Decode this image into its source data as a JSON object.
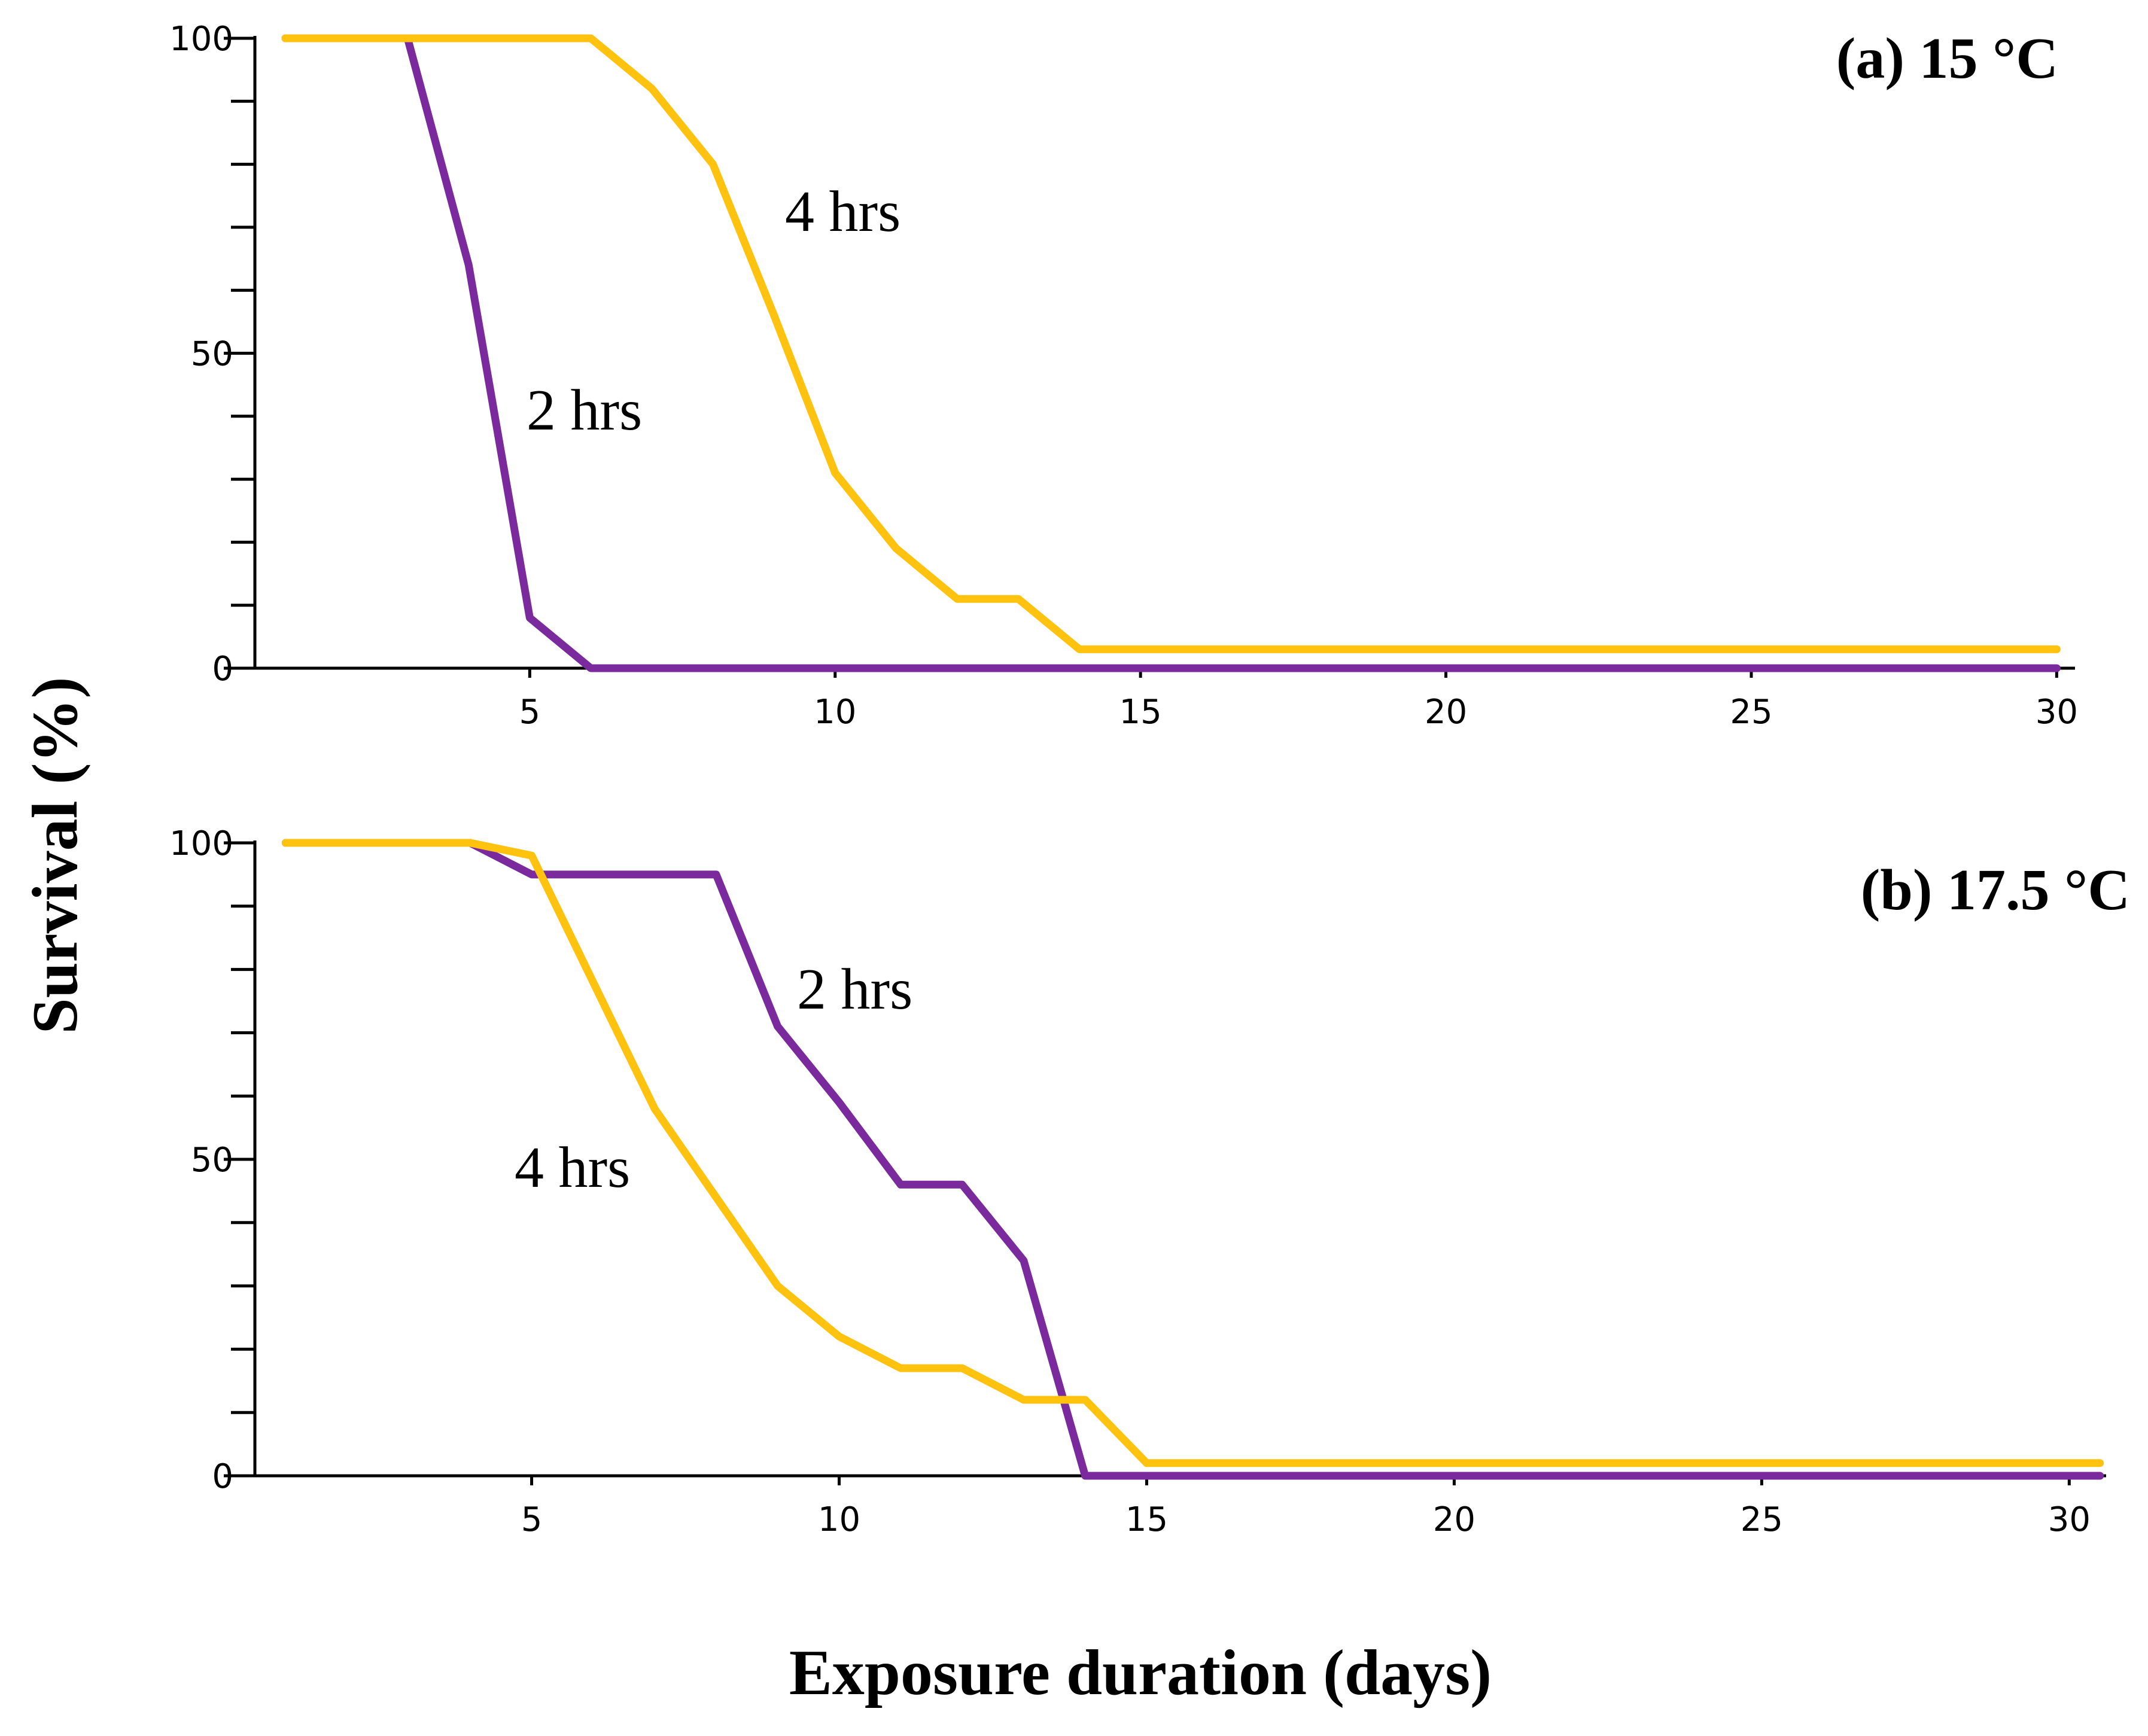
{
  "chart_data": {
    "type": "line",
    "xlabel": "Exposure duration (days)",
    "ylabel": "Survival (%)",
    "colors": {
      "2 hrs": "#7b2a9e",
      "4 hrs": "#ffc20e"
    },
    "panels": [
      {
        "id": "a",
        "title": "(a) 15 °C",
        "xlim": [
          0.5,
          30.3
        ],
        "ylim": [
          0,
          100
        ],
        "xticks": [
          5,
          10,
          15,
          20,
          25,
          30
        ],
        "yticks": [
          0,
          50,
          100
        ],
        "series": [
          {
            "name": "2 hrs",
            "label": "2 hrs",
            "points": [
              [
                1,
                100
              ],
              [
                2,
                100
              ],
              [
                3,
                100
              ],
              [
                4,
                64
              ],
              [
                5,
                8
              ],
              [
                6,
                0
              ],
              [
                7,
                0
              ],
              [
                8,
                0
              ],
              [
                9,
                0
              ],
              [
                10,
                0
              ],
              [
                12,
                0
              ],
              [
                14,
                0
              ],
              [
                16,
                0
              ],
              [
                18,
                0
              ],
              [
                20,
                0
              ],
              [
                22,
                0
              ],
              [
                24,
                0
              ],
              [
                26,
                0
              ],
              [
                28,
                0
              ],
              [
                30,
                0
              ]
            ]
          },
          {
            "name": "4 hrs",
            "label": "4 hrs",
            "points": [
              [
                1,
                100
              ],
              [
                2,
                100
              ],
              [
                3,
                100
              ],
              [
                4,
                100
              ],
              [
                5,
                100
              ],
              [
                6,
                100
              ],
              [
                7,
                92
              ],
              [
                8,
                80
              ],
              [
                9,
                56
              ],
              [
                10,
                31
              ],
              [
                11,
                19
              ],
              [
                12,
                11
              ],
              [
                13,
                11
              ],
              [
                14,
                3
              ],
              [
                15,
                3
              ],
              [
                16,
                3
              ],
              [
                18,
                3
              ],
              [
                20,
                3
              ],
              [
                22,
                3
              ],
              [
                24,
                3
              ],
              [
                26,
                3
              ],
              [
                28,
                3
              ],
              [
                30,
                3
              ]
            ]
          }
        ]
      },
      {
        "id": "b",
        "title": "(b) 17.5 °C",
        "xlim": [
          0.5,
          30.6
        ],
        "ylim": [
          0,
          100
        ],
        "xticks": [
          5,
          10,
          15,
          20,
          25,
          30
        ],
        "yticks": [
          0,
          50,
          100
        ],
        "series": [
          {
            "name": "2 hrs",
            "label": "2 hrs",
            "points": [
              [
                1,
                100
              ],
              [
                2,
                100
              ],
              [
                3,
                100
              ],
              [
                4,
                100
              ],
              [
                5,
                95
              ],
              [
                6,
                95
              ],
              [
                7,
                95
              ],
              [
                8,
                95
              ],
              [
                9,
                71
              ],
              [
                10,
                59
              ],
              [
                11,
                46
              ],
              [
                12,
                46
              ],
              [
                13,
                34
              ],
              [
                14,
                0
              ],
              [
                15,
                0
              ],
              [
                16,
                0
              ],
              [
                18,
                0
              ],
              [
                20,
                0
              ],
              [
                22,
                0
              ],
              [
                24,
                0
              ],
              [
                26,
                0
              ],
              [
                28,
                0
              ],
              [
                30,
                0
              ],
              [
                30.5,
                0
              ]
            ]
          },
          {
            "name": "4 hrs",
            "label": "4 hrs",
            "points": [
              [
                1,
                100
              ],
              [
                2,
                100
              ],
              [
                3,
                100
              ],
              [
                4,
                100
              ],
              [
                5,
                98
              ],
              [
                6,
                78
              ],
              [
                7,
                58
              ],
              [
                8,
                44
              ],
              [
                9,
                30
              ],
              [
                10,
                22
              ],
              [
                11,
                17
              ],
              [
                12,
                17
              ],
              [
                13,
                12
              ],
              [
                14,
                12
              ],
              [
                15,
                2
              ],
              [
                16,
                2
              ],
              [
                18,
                2
              ],
              [
                20,
                2
              ],
              [
                22,
                2
              ],
              [
                24,
                2
              ],
              [
                26,
                2
              ],
              [
                28,
                2
              ],
              [
                30,
                2
              ],
              [
                30.5,
                2
              ]
            ]
          }
        ]
      }
    ]
  }
}
